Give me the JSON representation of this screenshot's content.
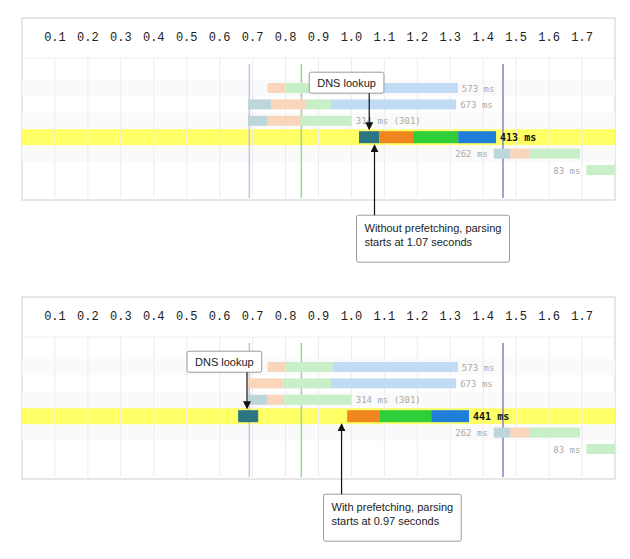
{
  "chart_data": [
    {
      "type": "waterfall",
      "xlim": [
        0,
        1.8
      ],
      "xticks": [
        0.1,
        0.2,
        0.3,
        0.4,
        0.5,
        0.6,
        0.7,
        0.8,
        0.9,
        1.0,
        1.1,
        1.2,
        1.3,
        1.4,
        1.5,
        1.6,
        1.7
      ],
      "grid": true,
      "markers": [
        {
          "value": 0.69,
          "color": "#d9b8e8"
        },
        {
          "value": 0.848,
          "color": "#9ad89a"
        },
        {
          "value": 1.46,
          "color": "#8a7fc8"
        }
      ],
      "rows": [
        {
          "label": "573 ms",
          "segments": [
            {
              "start": 0.745,
              "duration": 0.055,
              "color": "#f9d6ba"
            },
            {
              "start": 0.8,
              "duration": 0.143,
              "color": "#c9efc9"
            },
            {
              "start": 0.943,
              "duration": 0.38,
              "color": "#c0dbf3"
            }
          ]
        },
        {
          "label": "673 ms",
          "segments": [
            {
              "start": 0.686,
              "duration": 0.07,
              "color": "#bcd6da"
            },
            {
              "start": 0.756,
              "duration": 0.106,
              "color": "#f9d6ba"
            },
            {
              "start": 0.862,
              "duration": 0.076,
              "color": "#c9efc9"
            },
            {
              "start": 0.938,
              "duration": 0.38,
              "color": "#c0dbf3"
            }
          ]
        },
        {
          "label": "314 ms (301)",
          "segments": [
            {
              "start": 0.686,
              "duration": 0.06,
              "color": "#bcd6da"
            },
            {
              "start": 0.746,
              "duration": 0.1,
              "color": "#f9d6ba"
            },
            {
              "start": 0.846,
              "duration": 0.155,
              "color": "#c9efc9"
            }
          ]
        },
        {
          "label": "413 ms",
          "color": "#ffff66",
          "segments": [
            {
              "start": 1.023,
              "duration": 0.061,
              "color": "#2b7682"
            },
            {
              "start": 1.084,
              "duration": 0.103,
              "color": "#f0861e"
            },
            {
              "start": 1.187,
              "duration": 0.137,
              "color": "#2fcf3a"
            },
            {
              "start": 1.324,
              "duration": 0.115,
              "color": "#1f7fd8"
            }
          ]
        },
        {
          "label": "262 ms",
          "segments": [
            {
              "start": 1.432,
              "duration": 0.05,
              "color": "#bcd6da"
            },
            {
              "start": 1.482,
              "duration": 0.06,
              "color": "#f9d6ba"
            },
            {
              "start": 1.542,
              "duration": 0.152,
              "color": "#c9efc9"
            }
          ]
        },
        {
          "label": "83 ms",
          "segments": [
            {
              "start": 1.713,
              "duration": 0.1,
              "color": "#c9efc9"
            }
          ]
        }
      ],
      "annotations": [
        {
          "lines": [
            "DNS lookup"
          ],
          "x": 1.054
        },
        {
          "lines": [
            "Without prefetching, parsing",
            "starts at 1.07 seconds"
          ],
          "x": 1.07
        }
      ]
    },
    {
      "type": "waterfall",
      "xlim": [
        0,
        1.8
      ],
      "xticks": [
        0.1,
        0.2,
        0.3,
        0.4,
        0.5,
        0.6,
        0.7,
        0.8,
        0.9,
        1.0,
        1.1,
        1.2,
        1.3,
        1.4,
        1.5,
        1.6,
        1.7
      ],
      "grid": true,
      "markers": [
        {
          "value": 0.69,
          "color": "#d9b8e8"
        },
        {
          "value": 0.848,
          "color": "#9ad89a"
        },
        {
          "value": 1.46,
          "color": "#8a7fc8"
        }
      ],
      "rows": [
        {
          "label": "573 ms",
          "segments": [
            {
              "start": 0.745,
              "duration": 0.055,
              "color": "#f9d6ba"
            },
            {
              "start": 0.8,
              "duration": 0.143,
              "color": "#c9efc9"
            },
            {
              "start": 0.943,
              "duration": 0.38,
              "color": "#c0dbf3"
            }
          ]
        },
        {
          "label": "673 ms",
          "segments": [
            {
              "start": 0.686,
              "duration": 0.106,
              "color": "#f9d6ba"
            },
            {
              "start": 0.792,
              "duration": 0.146,
              "color": "#c9efc9"
            },
            {
              "start": 0.938,
              "duration": 0.38,
              "color": "#c0dbf3"
            }
          ]
        },
        {
          "label": "314 ms (301)",
          "segments": [
            {
              "start": 0.686,
              "duration": 0.06,
              "color": "#bcd6da"
            },
            {
              "start": 0.746,
              "duration": 0.05,
              "color": "#f9d6ba"
            },
            {
              "start": 0.796,
              "duration": 0.205,
              "color": "#c9efc9"
            }
          ]
        },
        {
          "label": "441 ms",
          "color": "#ffff66",
          "segments": [
            {
              "start": 0.656,
              "duration": 0.061,
              "color": "#2b7682"
            },
            {
              "start": 0.987,
              "duration": 0.097,
              "color": "#f0861e"
            },
            {
              "start": 1.084,
              "duration": 0.158,
              "color": "#2fcf3a"
            },
            {
              "start": 1.242,
              "duration": 0.115,
              "color": "#1f7fd8"
            }
          ]
        },
        {
          "label": "262 ms",
          "segments": [
            {
              "start": 1.432,
              "duration": 0.05,
              "color": "#bcd6da"
            },
            {
              "start": 1.482,
              "duration": 0.06,
              "color": "#f9d6ba"
            },
            {
              "start": 1.542,
              "duration": 0.152,
              "color": "#c9efc9"
            }
          ]
        },
        {
          "label": "83 ms",
          "segments": [
            {
              "start": 1.713,
              "duration": 0.1,
              "color": "#c9efc9"
            }
          ]
        }
      ],
      "annotations": [
        {
          "lines": [
            "DNS lookup"
          ],
          "x": 0.683
        },
        {
          "lines": [
            "With prefetching, parsing",
            "starts at 0.97 seconds"
          ],
          "x": 0.97
        }
      ]
    }
  ]
}
